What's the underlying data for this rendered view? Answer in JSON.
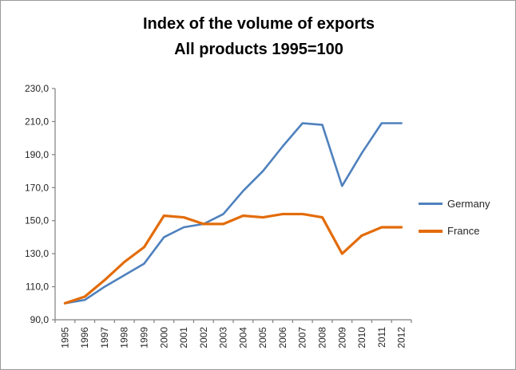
{
  "title": {
    "line1": "Index of the volume of exports",
    "line2": "All products 1995=100"
  },
  "legend": {
    "entries": [
      {
        "label": "Germany",
        "color": "#4F81BD"
      },
      {
        "label": "France",
        "color": "#E36C0A"
      }
    ]
  },
  "axes": {
    "ytick_labels": [
      "90,0",
      "110,0",
      "130,0",
      "150,0",
      "170,0",
      "190,0",
      "210,0",
      "230,0"
    ],
    "axis_color": "#808080"
  },
  "chart_data": {
    "type": "line",
    "title": "Index of the volume of exports  All products 1995=100",
    "categories": [
      "1995",
      "1996",
      "1997",
      "1998",
      "1999",
      "2000",
      "2001",
      "2002",
      "2003",
      "2004",
      "2005",
      "2006",
      "2007",
      "2008",
      "2009",
      "2010",
      "2011",
      "2012"
    ],
    "series": [
      {
        "name": "Germany",
        "color": "#4F81BD",
        "stroke_width": 2.6,
        "values": [
          100,
          102,
          110,
          117,
          124,
          140,
          146,
          148,
          154,
          168,
          180,
          195,
          209,
          208,
          171,
          191,
          209,
          209
        ]
      },
      {
        "name": "France",
        "color": "#E36C0A",
        "stroke_width": 3.2,
        "values": [
          100,
          104,
          114,
          125,
          134,
          153,
          152,
          148,
          148,
          153,
          152,
          154,
          154,
          152,
          130,
          141,
          146,
          146
        ]
      }
    ],
    "xlabel": "",
    "ylabel": "",
    "ylim": [
      90,
      230
    ],
    "ytick_values": [
      90,
      110,
      130,
      150,
      170,
      190,
      210,
      230
    ],
    "grid": false,
    "legend_position": "right"
  }
}
